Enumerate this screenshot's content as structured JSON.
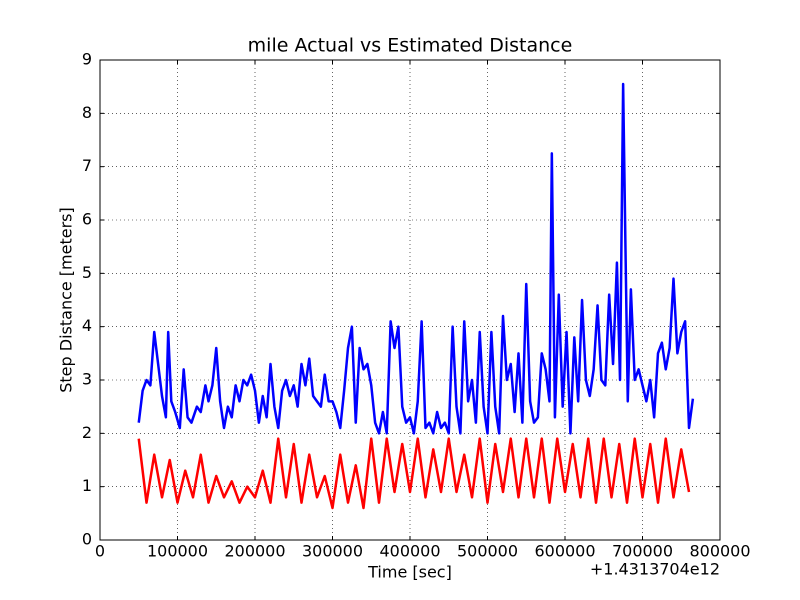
{
  "chart_data": {
    "type": "line",
    "title": "mile Actual vs Estimated Distance",
    "x_label": "Time [sec]",
    "y_label": "Step Distance [meters]",
    "x_offset_label": "+1.4313704e12",
    "xlim": [
      0,
      800000
    ],
    "ylim": [
      0,
      9
    ],
    "xticks": [
      0,
      100000,
      200000,
      300000,
      400000,
      500000,
      600000,
      700000,
      800000
    ],
    "yticks": [
      0,
      1,
      2,
      3,
      4,
      5,
      6,
      7,
      8,
      9
    ],
    "grid": true,
    "series": [
      {
        "color": "#0000ff",
        "x": [
          50000,
          55000,
          60000,
          65000,
          70000,
          75000,
          80000,
          85000,
          88000,
          92000,
          97000,
          103000,
          108000,
          113000,
          118000,
          125000,
          130000,
          136000,
          140000,
          145000,
          150000,
          155000,
          160000,
          165000,
          170000,
          175000,
          180000,
          185000,
          190000,
          195000,
          200000,
          205000,
          210000,
          215000,
          220000,
          225000,
          230000,
          235000,
          240000,
          245000,
          250000,
          255000,
          260000,
          265000,
          270000,
          275000,
          280000,
          285000,
          290000,
          295000,
          300000,
          305000,
          310000,
          315000,
          320000,
          325000,
          330000,
          335000,
          340000,
          345000,
          350000,
          355000,
          360000,
          365000,
          370000,
          375000,
          380000,
          385000,
          390000,
          395000,
          400000,
          405000,
          410000,
          415000,
          420000,
          425000,
          430000,
          435000,
          440000,
          445000,
          450000,
          455000,
          460000,
          465000,
          470000,
          475000,
          480000,
          485000,
          490000,
          495000,
          500000,
          505000,
          510000,
          515000,
          520000,
          525000,
          530000,
          535000,
          540000,
          545000,
          550000,
          555000,
          560000,
          565000,
          570000,
          575000,
          580000,
          583000,
          587000,
          592000,
          597000,
          602000,
          607000,
          612000,
          617000,
          622000,
          627000,
          632000,
          637000,
          642000,
          647000,
          652000,
          657000,
          662000,
          667000,
          671000,
          675000,
          678000,
          681000,
          685000,
          690000,
          695000,
          700000,
          705000,
          710000,
          715000,
          720000,
          725000,
          730000,
          735000,
          740000,
          745000,
          750000,
          755000,
          760000,
          765000
        ],
        "values": [
          2.2,
          2.8,
          3.0,
          2.9,
          3.9,
          3.3,
          2.7,
          2.3,
          3.9,
          2.6,
          2.4,
          2.1,
          3.2,
          2.3,
          2.2,
          2.5,
          2.4,
          2.9,
          2.6,
          2.9,
          3.6,
          2.6,
          2.1,
          2.5,
          2.3,
          2.9,
          2.6,
          3.0,
          2.9,
          3.1,
          2.8,
          2.2,
          2.7,
          2.3,
          3.3,
          2.5,
          2.1,
          2.8,
          3.0,
          2.7,
          2.9,
          2.5,
          3.3,
          2.9,
          3.4,
          2.7,
          2.6,
          2.5,
          3.1,
          2.6,
          2.6,
          2.4,
          2.1,
          2.8,
          3.6,
          4.0,
          2.2,
          3.6,
          3.2,
          3.3,
          2.9,
          2.2,
          2.0,
          2.4,
          2.0,
          4.1,
          3.6,
          4.0,
          2.5,
          2.2,
          2.3,
          2.0,
          2.6,
          4.1,
          2.1,
          2.2,
          2.0,
          2.4,
          2.1,
          2.2,
          2.0,
          4.0,
          2.5,
          2.0,
          4.1,
          2.6,
          3.0,
          2.2,
          3.9,
          2.5,
          2.0,
          3.9,
          2.5,
          2.0,
          4.2,
          3.0,
          3.3,
          2.4,
          3.5,
          2.2,
          4.8,
          2.6,
          2.2,
          2.3,
          3.5,
          3.2,
          2.6,
          7.25,
          2.3,
          4.6,
          2.5,
          3.9,
          2.0,
          3.8,
          2.6,
          4.5,
          3.0,
          2.7,
          3.2,
          4.4,
          3.0,
          2.9,
          4.6,
          3.3,
          5.2,
          3.0,
          8.55,
          5.5,
          2.6,
          4.7,
          3.0,
          3.2,
          2.9,
          2.6,
          3.0,
          2.3,
          3.5,
          3.7,
          3.2,
          3.6,
          4.9,
          3.5,
          3.9,
          4.1,
          2.1,
          2.65
        ]
      },
      {
        "color": "#ff0000",
        "x": [
          50000,
          60000,
          70000,
          80000,
          90000,
          100000,
          110000,
          120000,
          130000,
          140000,
          150000,
          160000,
          170000,
          180000,
          190000,
          200000,
          210000,
          220000,
          230000,
          240000,
          250000,
          260000,
          270000,
          280000,
          290000,
          300000,
          310000,
          320000,
          330000,
          340000,
          350000,
          360000,
          370000,
          380000,
          390000,
          400000,
          410000,
          420000,
          430000,
          440000,
          450000,
          460000,
          470000,
          480000,
          490000,
          500000,
          510000,
          520000,
          530000,
          540000,
          550000,
          560000,
          570000,
          580000,
          590000,
          600000,
          610000,
          620000,
          630000,
          640000,
          650000,
          660000,
          670000,
          680000,
          690000,
          700000,
          710000,
          720000,
          730000,
          740000,
          750000,
          760000
        ],
        "values": [
          1.9,
          0.7,
          1.6,
          0.8,
          1.5,
          0.7,
          1.3,
          0.8,
          1.6,
          0.7,
          1.2,
          0.8,
          1.1,
          0.7,
          1.0,
          0.8,
          1.3,
          0.7,
          1.9,
          0.8,
          1.8,
          0.7,
          1.6,
          0.8,
          1.2,
          0.6,
          1.6,
          0.7,
          1.4,
          0.6,
          1.9,
          0.7,
          1.9,
          0.9,
          1.8,
          0.9,
          1.9,
          0.8,
          1.7,
          0.9,
          1.9,
          0.9,
          1.6,
          0.8,
          1.9,
          0.7,
          1.8,
          0.9,
          1.9,
          0.8,
          1.9,
          0.8,
          1.9,
          0.7,
          1.9,
          0.9,
          1.8,
          0.8,
          1.9,
          0.7,
          1.9,
          0.8,
          1.8,
          0.7,
          1.9,
          0.8,
          1.8,
          0.7,
          1.9,
          0.8,
          1.7,
          0.9
        ]
      }
    ]
  }
}
